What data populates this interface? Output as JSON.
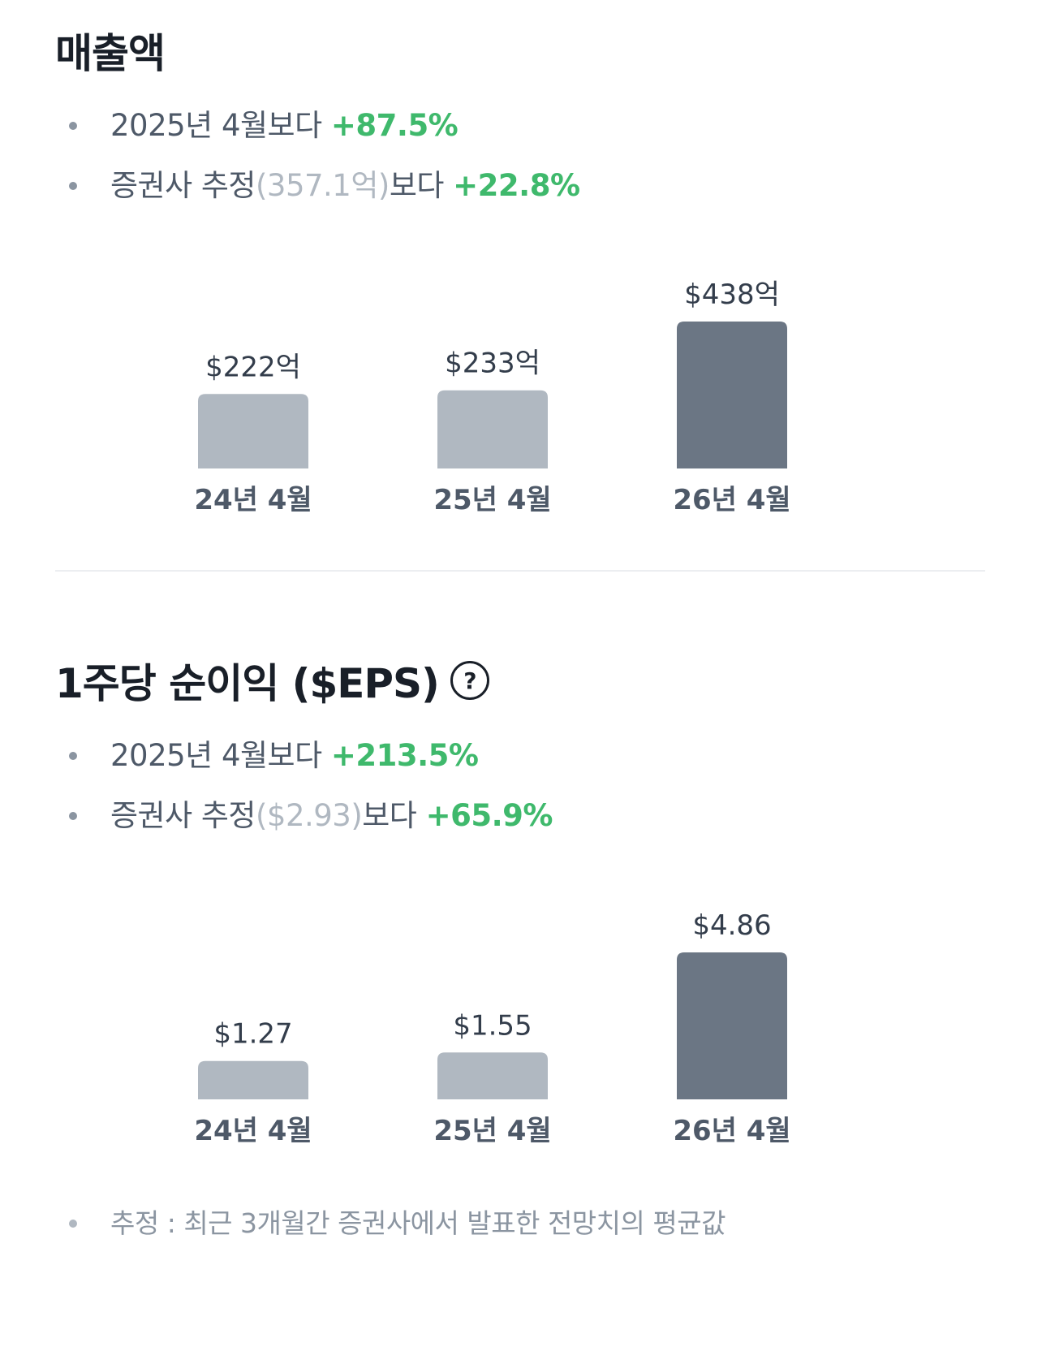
{
  "revenue": {
    "title": "매출액",
    "bullets": [
      {
        "prefix": "2025년 4월보다 ",
        "estimate": "",
        "suffix": "",
        "change": "+87.5%"
      },
      {
        "prefix": "증권사 추정",
        "estimate": "(357.1억)",
        "suffix": "보다 ",
        "change": "+22.8%"
      }
    ]
  },
  "eps": {
    "title": "1주당 순이익 ($EPS)",
    "help_icon": "?",
    "bullets": [
      {
        "prefix": "2025년 4월보다 ",
        "estimate": "",
        "suffix": "",
        "change": "+213.5%"
      },
      {
        "prefix": "증권사 추정",
        "estimate": "($2.93)",
        "suffix": "보다 ",
        "change": "+65.9%"
      }
    ]
  },
  "footnote": "추정 : 최근 3개월간 증권사에서 발표한 전망치의 평균값",
  "colors": {
    "positive": "#3fb96c",
    "bar_past": "#b0b8c1",
    "bar_current": "#6b7684",
    "label": "#4e5968",
    "value": "#333d4b"
  },
  "chart_data": [
    {
      "type": "bar",
      "categories": [
        "24년 4월",
        "25년 4월",
        "26년 4월"
      ],
      "values": [
        222,
        233,
        438
      ],
      "value_labels": [
        "$222억",
        "$233억",
        "$438억"
      ],
      "highlight_index": 2
    },
    {
      "type": "bar",
      "categories": [
        "24년 4월",
        "25년 4월",
        "26년 4월"
      ],
      "values": [
        1.27,
        1.55,
        4.86
      ],
      "value_labels": [
        "$1.27",
        "$1.55",
        "$4.86"
      ],
      "highlight_index": 2
    }
  ]
}
